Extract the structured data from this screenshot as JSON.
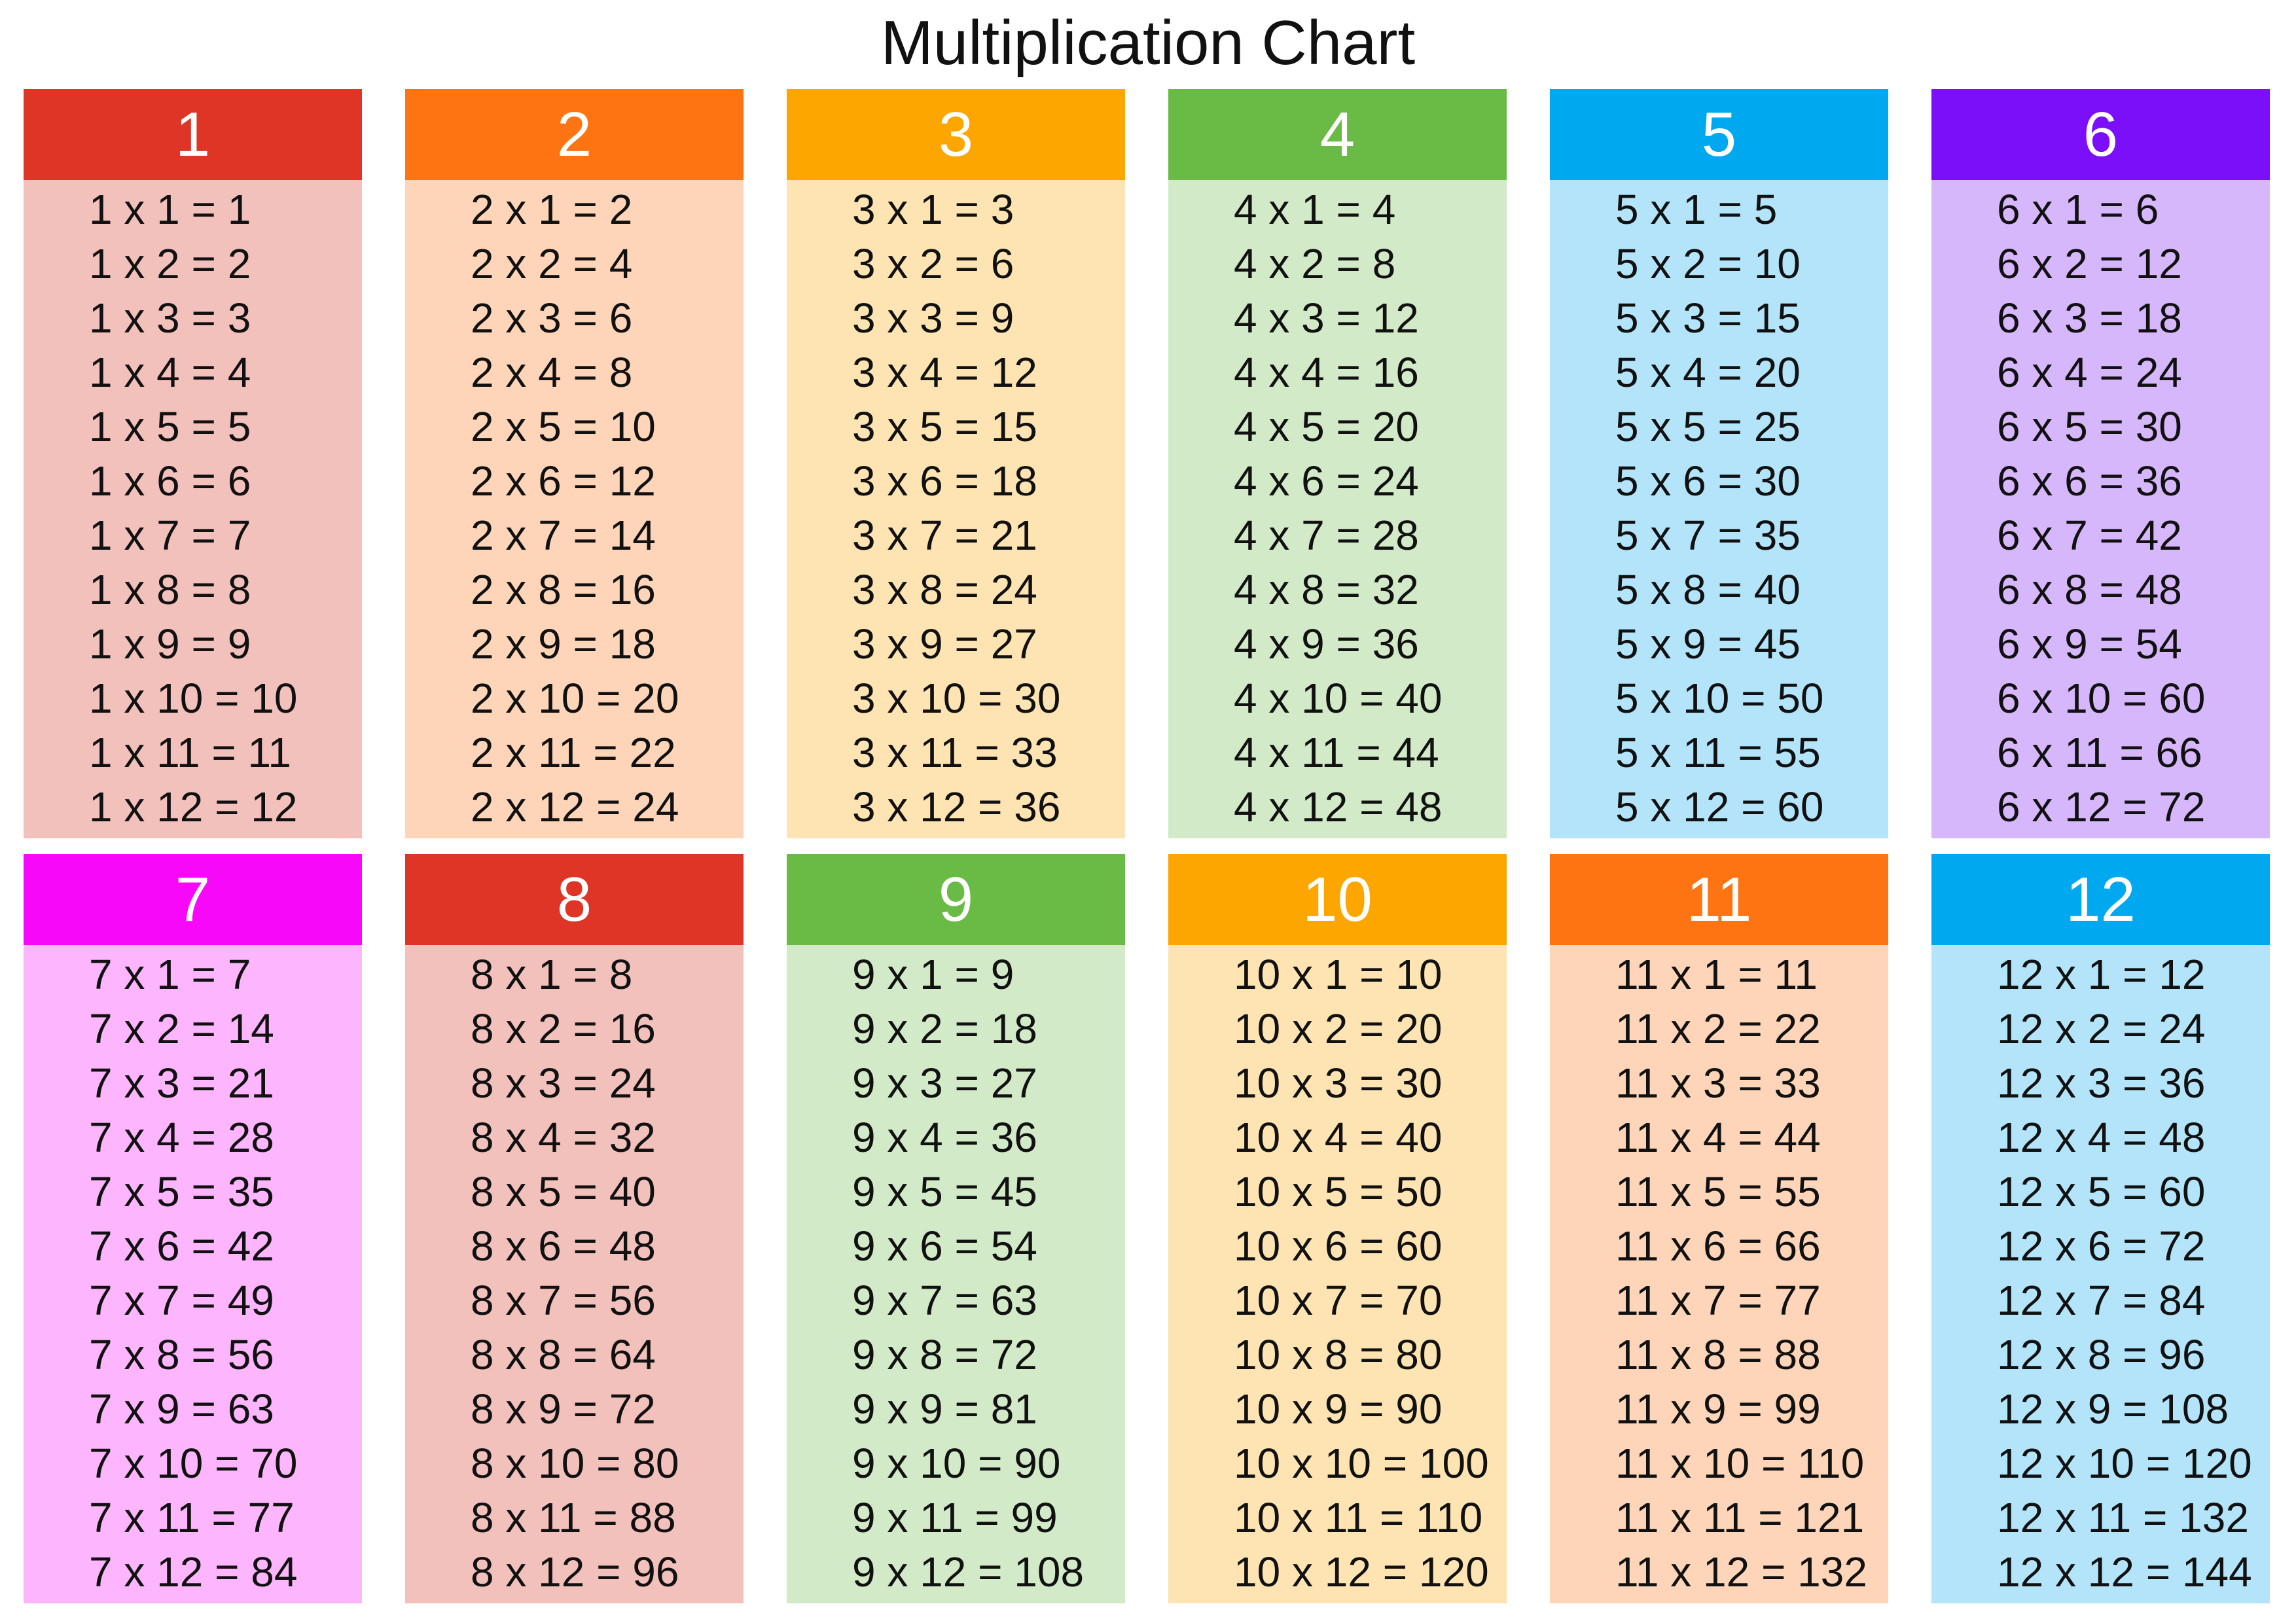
{
  "title": "Multiplication Chart",
  "tables": [
    {
      "label": "1",
      "header_color": "#de3526",
      "bg_color": "#f3c1bc",
      "rows": [
        "1 x 1 = 1",
        "1 x 2 = 2",
        "1 x 3 = 3",
        "1 x 4 = 4",
        "1 x 5 = 5",
        "1 x 6 = 6",
        "1 x 7 = 7",
        "1 x 8 = 8",
        "1 x 9 = 9",
        "1 x 10 = 10",
        "1 x 11 = 11",
        "1 x 12 = 12"
      ]
    },
    {
      "label": "2",
      "header_color": "#fe7413",
      "bg_color": "#fed5b8",
      "rows": [
        "2 x 1 = 2",
        "2 x 2 = 4",
        "2 x 3 = 6",
        "2 x 4 = 8",
        "2 x 5 = 10",
        "2 x 6 = 12",
        "2 x 7 = 14",
        "2 x 8 = 16",
        "2 x 9 = 18",
        "2 x 10 = 20",
        "2 x 11 = 22",
        "2 x 12 = 24"
      ]
    },
    {
      "label": "3",
      "header_color": "#fea600",
      "bg_color": "#fee3b3",
      "rows": [
        "3 x 1 = 3",
        "3 x 2 = 6",
        "3 x 3 = 9",
        "3 x 4 = 12",
        "3 x 5 = 15",
        "3 x 6 = 18",
        "3 x 7 = 21",
        "3 x 8 = 24",
        "3 x 9 = 27",
        "3 x 10 = 30",
        "3 x 11 = 33",
        "3 x 12 = 36"
      ]
    },
    {
      "label": "4",
      "header_color": "#69bb45",
      "bg_color": "#d2eac7",
      "rows": [
        "4 x 1 = 4",
        "4 x 2 = 8",
        "4 x 3 = 12",
        "4 x 4 = 16",
        "4 x 5 = 20",
        "4 x 6 = 24",
        "4 x 7 = 28",
        "4 x 8 = 32",
        "4 x 9 = 36",
        "4 x 10 = 40",
        "4 x 11 = 44",
        "4 x 12 = 48"
      ]
    },
    {
      "label": "5",
      "header_color": "#00a9ef",
      "bg_color": "#b3e4fa",
      "rows": [
        "5 x 1 = 5",
        "5 x 2 = 10",
        "5 x 3 = 15",
        "5 x 4 = 20",
        "5 x 5 = 25",
        "5 x 6 = 30",
        "5 x 7 = 35",
        "5 x 8 = 40",
        "5 x 9 = 45",
        "5 x 10 = 50",
        "5 x 11 = 55",
        "5 x 12 = 60"
      ]
    },
    {
      "label": "6",
      "header_color": "#7b0ff9",
      "bg_color": "#d7b7fc",
      "rows": [
        "6 x 1 = 6",
        "6 x 2 = 12",
        "6 x 3 = 18",
        "6 x 4 = 24",
        "6 x 5 = 30",
        "6 x 6 = 36",
        "6 x 7 = 42",
        "6 x 8 = 48",
        "6 x 9 = 54",
        "6 x 10 = 60",
        "6 x 11 = 66",
        "6 x 12 = 72"
      ]
    },
    {
      "label": "7",
      "header_color": "#f808f8",
      "bg_color": "#fdb5fd",
      "rows": [
        "7 x 1 = 7",
        "7 x 2 = 14",
        "7 x 3 = 21",
        "7 x 4 = 28",
        "7 x 5 = 35",
        "7 x 6 = 42",
        "7 x 7 = 49",
        "7 x 8 = 56",
        "7 x 9 = 63",
        "7 x 10 = 70",
        "7 x 11 = 77",
        "7 x 12 = 84"
      ]
    },
    {
      "label": "8",
      "header_color": "#de3526",
      "bg_color": "#f3c1bc",
      "rows": [
        "8 x 1 = 8",
        "8 x 2 = 16",
        "8 x 3 = 24",
        "8 x 4 = 32",
        "8 x 5 = 40",
        "8 x 6 = 48",
        "8 x 7 = 56",
        "8 x 8 = 64",
        "8 x 9 = 72",
        "8 x 10 = 80",
        "8 x 11 = 88",
        "8 x 12 = 96"
      ]
    },
    {
      "label": "9",
      "header_color": "#69bb45",
      "bg_color": "#d2eac7",
      "rows": [
        "9 x 1 = 9",
        "9 x 2 = 18",
        "9 x 3 = 27",
        "9 x 4 = 36",
        "9 x 5 = 45",
        "9 x 6 = 54",
        "9 x 7 = 63",
        "9 x 8 = 72",
        "9 x 9 = 81",
        "9 x 10 = 90",
        "9 x 11 = 99",
        "9 x 12 = 108"
      ]
    },
    {
      "label": "10",
      "header_color": "#fea600",
      "bg_color": "#fee3b3",
      "rows": [
        "10 x 1 = 10",
        "10 x 2 = 20",
        "10 x 3 = 30",
        "10 x 4 = 40",
        "10 x 5 = 50",
        "10 x 6 = 60",
        "10 x 7 = 70",
        "10 x 8 = 80",
        "10 x 9 = 90",
        "10 x 10 = 100",
        "10 x 11 = 110",
        "10 x 12 = 120"
      ]
    },
    {
      "label": "11",
      "header_color": "#fe7413",
      "bg_color": "#fed5b8",
      "rows": [
        "11 x 1 = 11",
        "11 x 2 = 22",
        "11 x 3 = 33",
        "11 x 4 = 44",
        "11 x 5 = 55",
        "11 x 6 = 66",
        "11 x 7 = 77",
        "11 x 8 = 88",
        "11 x 9 = 99",
        "11 x 10 = 110",
        "11 x 11 = 121",
        "11 x 12 = 132"
      ]
    },
    {
      "label": "12",
      "header_color": "#00a9ef",
      "bg_color": "#b3e4fa",
      "rows": [
        "12 x 1 = 12",
        "12 x 2 = 24",
        "12 x 3 = 36",
        "12 x 4 = 48",
        "12 x 5 = 60",
        "12 x 6 = 72",
        "12 x 7 = 84",
        "12 x 8 = 96",
        "12 x 9 = 108",
        "12 x 10 = 120",
        "12 x 11 = 132",
        "12 x 12 = 144"
      ]
    }
  ]
}
